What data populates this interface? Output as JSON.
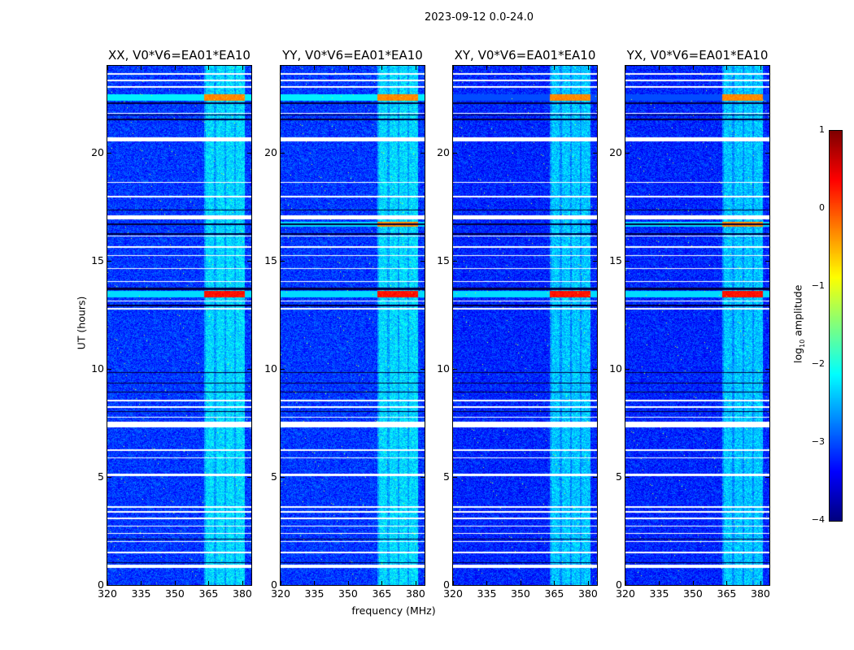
{
  "chart_data": {
    "type": "heatmap",
    "title": "2023-09-12 0.0-24.0",
    "xlabel": "frequency (MHz)",
    "ylabel": "UT (hours)",
    "xlim": [
      320,
      384
    ],
    "ylim": [
      0,
      24
    ],
    "xticks": [
      320,
      335,
      350,
      365,
      380
    ],
    "yticks": [
      0,
      5,
      10,
      15,
      20
    ],
    "panels": [
      {
        "title": "XX, V0*V6=EA01*EA10",
        "hot_rows_hours": [
          [
            22.4,
            22.7
          ],
          [
            13.3,
            13.6
          ]
        ],
        "cross_pol": false
      },
      {
        "title": "YY, V0*V6=EA01*EA10",
        "hot_rows_hours": [
          [
            22.4,
            22.7
          ],
          [
            13.3,
            13.6
          ],
          [
            16.55,
            16.8
          ]
        ],
        "cross_pol": false
      },
      {
        "title": "XY, V0*V6=EA01*EA10",
        "hot_rows_hours": [
          [
            22.4,
            22.7
          ],
          [
            13.3,
            13.6
          ]
        ],
        "cross_pol": true
      },
      {
        "title": "YX, V0*V6=EA01*EA10",
        "hot_rows_hours": [
          [
            22.4,
            22.7
          ],
          [
            13.3,
            13.6
          ],
          [
            16.55,
            16.8
          ]
        ],
        "cross_pol": true
      }
    ],
    "rfi_band_mhz": [
      363,
      381
    ],
    "flagged_rows_hours": [
      [
        0.8,
        0.95
      ],
      [
        1.45,
        1.55
      ],
      [
        1.98,
        2.03
      ],
      [
        2.35,
        2.4
      ],
      [
        2.7,
        2.74
      ],
      [
        3.05,
        3.1
      ],
      [
        3.35,
        3.4
      ],
      [
        3.55,
        3.65
      ],
      [
        5.05,
        5.15
      ],
      [
        5.85,
        5.9
      ],
      [
        6.2,
        6.28
      ],
      [
        7.3,
        7.55
      ],
      [
        7.72,
        7.78
      ],
      [
        8.2,
        8.25
      ],
      [
        8.5,
        8.55
      ],
      [
        12.75,
        12.8
      ],
      [
        13.1,
        13.15
      ],
      [
        14.0,
        14.05
      ],
      [
        14.6,
        14.65
      ],
      [
        15.2,
        15.25
      ],
      [
        15.6,
        15.65
      ],
      [
        16.1,
        16.14
      ],
      [
        16.9,
        17.1
      ],
      [
        17.9,
        18.0
      ],
      [
        18.6,
        18.64
      ],
      [
        20.5,
        20.68
      ],
      [
        21.8,
        21.84
      ],
      [
        23.0,
        23.05
      ],
      [
        23.3,
        23.35
      ],
      [
        23.6,
        23.65
      ]
    ],
    "blank_rows_hours": [
      [
        1.0,
        1.04
      ],
      [
        2.1,
        2.14
      ],
      [
        8.0,
        8.05
      ],
      [
        8.9,
        8.95
      ],
      [
        9.3,
        9.35
      ],
      [
        9.8,
        9.85
      ],
      [
        12.9,
        12.96
      ],
      [
        13.65,
        13.75
      ],
      [
        16.2,
        16.25
      ],
      [
        16.65,
        16.7
      ],
      [
        17.3,
        17.35
      ],
      [
        21.5,
        21.55
      ],
      [
        21.7,
        21.74
      ],
      [
        22.25,
        22.3
      ]
    ],
    "colorbar": {
      "label": "log10 amplitude",
      "label_main": "log",
      "label_sub": "10",
      "label_rest": " amplitude",
      "range": [
        -4,
        1
      ],
      "ticks": [
        "−4",
        "−3",
        "−2",
        "−1",
        "0",
        "1"
      ],
      "tick_values": [
        -4,
        -3,
        -2,
        -1,
        0,
        1
      ],
      "colormap": "jet"
    }
  }
}
